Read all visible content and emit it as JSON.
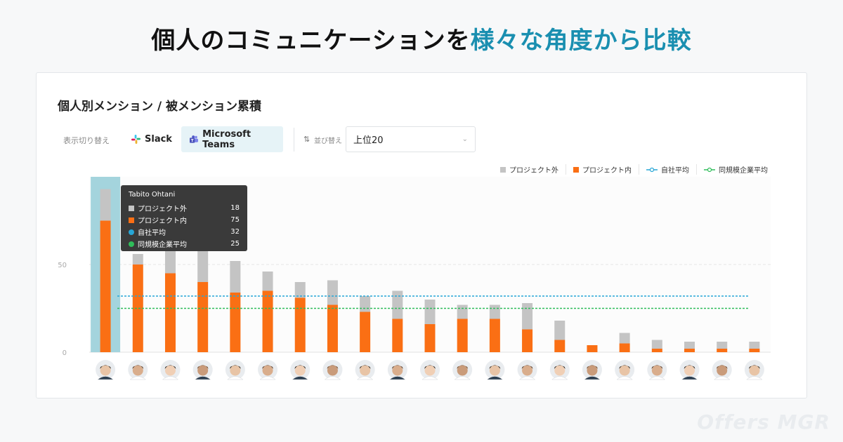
{
  "headline": {
    "main": "個人のコミュニケーションを",
    "accent": "様々な角度から比較"
  },
  "card": {
    "title": "個人別メンション / 被メンション累積"
  },
  "toolbar": {
    "switch_label": "表示切り替え",
    "slack_label": "Slack",
    "teams_label": "Microsoft Teams",
    "sort_label": "並び替え",
    "sort_value": "上位20"
  },
  "colors": {
    "outside": "#c4c4c4",
    "inside": "#fa6f14",
    "company": "#27a6d6",
    "peer": "#2fbd5a",
    "highlight": "#a4d4dd",
    "accent": "#1a8fb0"
  },
  "chart_data": {
    "type": "bar",
    "stacked": true,
    "series": [
      {
        "name": "プロジェクト外",
        "values": [
          18,
          6,
          18,
          18,
          18,
          11,
          9,
          14,
          9,
          16,
          14,
          8,
          8,
          15,
          11,
          0,
          6,
          5,
          4,
          4,
          4
        ]
      },
      {
        "name": "プロジェクト内",
        "values": [
          75,
          50,
          45,
          40,
          34,
          35,
          31,
          27,
          23,
          19,
          16,
          19,
          19,
          13,
          7,
          4,
          5,
          2,
          2,
          2,
          2
        ]
      }
    ],
    "lines": [
      {
        "name": "自社平均",
        "value": 32
      },
      {
        "name": "同規模企業平均",
        "value": 25
      }
    ],
    "yticks": [
      0,
      50
    ],
    "ylim": [
      0,
      100
    ],
    "grid": true,
    "legend_position": "top-right",
    "highlight_index": 0,
    "tooltip": {
      "name": "Tabito Ohtani",
      "rows": [
        {
          "label": "プロジェクト外",
          "value": "18"
        },
        {
          "label": "プロジェクト内",
          "value": "75"
        },
        {
          "label": "自社平均",
          "value": "32"
        },
        {
          "label": "同規模企業平均",
          "value": "25"
        }
      ]
    }
  },
  "watermark": "Offers MGR"
}
